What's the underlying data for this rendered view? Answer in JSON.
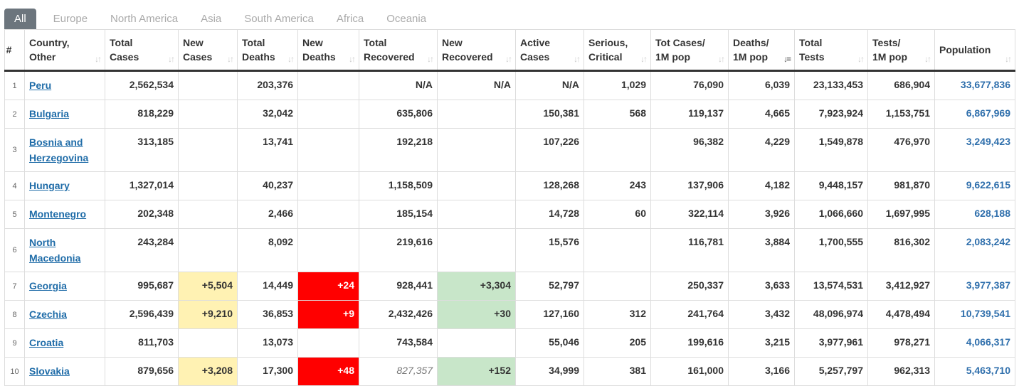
{
  "tabs": [
    "All",
    "Europe",
    "North America",
    "Asia",
    "South America",
    "Africa",
    "Oceania"
  ],
  "columns": [
    {
      "l1": "#",
      "l2": ""
    },
    {
      "l1": "Country,",
      "l2": "Other"
    },
    {
      "l1": "Total",
      "l2": "Cases"
    },
    {
      "l1": "New",
      "l2": "Cases"
    },
    {
      "l1": "Total",
      "l2": "Deaths"
    },
    {
      "l1": "New",
      "l2": "Deaths"
    },
    {
      "l1": "Total",
      "l2": "Recovered"
    },
    {
      "l1": "New",
      "l2": "Recovered"
    },
    {
      "l1": "Active",
      "l2": "Cases"
    },
    {
      "l1": "Serious,",
      "l2": "Critical"
    },
    {
      "l1": "Tot Cases/",
      "l2": "1M pop"
    },
    {
      "l1": "Deaths/",
      "l2": "1M pop"
    },
    {
      "l1": "Total",
      "l2": "Tests"
    },
    {
      "l1": "Tests/",
      "l2": "1M pop"
    },
    {
      "l1": "Population",
      "l2": ""
    }
  ],
  "rows": [
    {
      "idx": "1",
      "country": "Peru",
      "total_cases": "2,562,534",
      "new_cases": "",
      "total_deaths": "203,376",
      "new_deaths": "",
      "total_recovered": "N/A",
      "new_recovered": "N/A",
      "active": "N/A",
      "serious": "1,029",
      "cases_1m": "76,090",
      "deaths_1m": "6,039",
      "tests": "23,133,453",
      "tests_1m": "686,904",
      "population": "33,677,836"
    },
    {
      "idx": "2",
      "country": "Bulgaria",
      "total_cases": "818,229",
      "new_cases": "",
      "total_deaths": "32,042",
      "new_deaths": "",
      "total_recovered": "635,806",
      "new_recovered": "",
      "active": "150,381",
      "serious": "568",
      "cases_1m": "119,137",
      "deaths_1m": "4,665",
      "tests": "7,923,924",
      "tests_1m": "1,153,751",
      "population": "6,867,969"
    },
    {
      "idx": "3",
      "country": "Bosnia and Herzegovina",
      "total_cases": "313,185",
      "new_cases": "",
      "total_deaths": "13,741",
      "new_deaths": "",
      "total_recovered": "192,218",
      "new_recovered": "",
      "active": "107,226",
      "serious": "",
      "cases_1m": "96,382",
      "deaths_1m": "4,229",
      "tests": "1,549,878",
      "tests_1m": "476,970",
      "population": "3,249,423"
    },
    {
      "idx": "4",
      "country": "Hungary",
      "total_cases": "1,327,014",
      "new_cases": "",
      "total_deaths": "40,237",
      "new_deaths": "",
      "total_recovered": "1,158,509",
      "new_recovered": "",
      "active": "128,268",
      "serious": "243",
      "cases_1m": "137,906",
      "deaths_1m": "4,182",
      "tests": "9,448,157",
      "tests_1m": "981,870",
      "population": "9,622,615"
    },
    {
      "idx": "5",
      "country": "Montenegro",
      "total_cases": "202,348",
      "new_cases": "",
      "total_deaths": "2,466",
      "new_deaths": "",
      "total_recovered": "185,154",
      "new_recovered": "",
      "active": "14,728",
      "serious": "60",
      "cases_1m": "322,114",
      "deaths_1m": "3,926",
      "tests": "1,066,660",
      "tests_1m": "1,697,995",
      "population": "628,188"
    },
    {
      "idx": "6",
      "country": "North Macedonia",
      "total_cases": "243,284",
      "new_cases": "",
      "total_deaths": "8,092",
      "new_deaths": "",
      "total_recovered": "219,616",
      "new_recovered": "",
      "active": "15,576",
      "serious": "",
      "cases_1m": "116,781",
      "deaths_1m": "3,884",
      "tests": "1,700,555",
      "tests_1m": "816,302",
      "population": "2,083,242"
    },
    {
      "idx": "7",
      "country": "Georgia",
      "total_cases": "995,687",
      "new_cases": "+5,504",
      "total_deaths": "14,449",
      "new_deaths": "+24",
      "total_recovered": "928,441",
      "new_recovered": "+3,304",
      "active": "52,797",
      "serious": "",
      "cases_1m": "250,337",
      "deaths_1m": "3,633",
      "tests": "13,574,531",
      "tests_1m": "3,412,927",
      "population": "3,977,387"
    },
    {
      "idx": "8",
      "country": "Czechia",
      "total_cases": "2,596,439",
      "new_cases": "+9,210",
      "total_deaths": "36,853",
      "new_deaths": "+9",
      "total_recovered": "2,432,426",
      "new_recovered": "+30",
      "active": "127,160",
      "serious": "312",
      "cases_1m": "241,764",
      "deaths_1m": "3,432",
      "tests": "48,096,974",
      "tests_1m": "4,478,494",
      "population": "10,739,541"
    },
    {
      "idx": "9",
      "country": "Croatia",
      "total_cases": "811,703",
      "new_cases": "",
      "total_deaths": "13,073",
      "new_deaths": "",
      "total_recovered": "743,584",
      "new_recovered": "",
      "active": "55,046",
      "serious": "205",
      "cases_1m": "199,616",
      "deaths_1m": "3,215",
      "tests": "3,977,961",
      "tests_1m": "978,271",
      "population": "4,066,317"
    },
    {
      "idx": "10",
      "country": "Slovakia",
      "total_cases": "879,656",
      "new_cases": "+3,208",
      "total_deaths": "17,300",
      "new_deaths": "+48",
      "total_recovered": "827,357",
      "new_recovered": "+152",
      "active": "34,999",
      "serious": "381",
      "cases_1m": "161,000",
      "deaths_1m": "3,166",
      "tests": "5,257,797",
      "tests_1m": "962,313",
      "population": "5,463,710"
    }
  ],
  "colors": {
    "new_cases_bg": "#fff2b3",
    "new_deaths_bg": "#ff0000",
    "new_recovered_bg": "#c8e6c9",
    "link": "#1f6ca8",
    "population": "#2f6fac"
  }
}
